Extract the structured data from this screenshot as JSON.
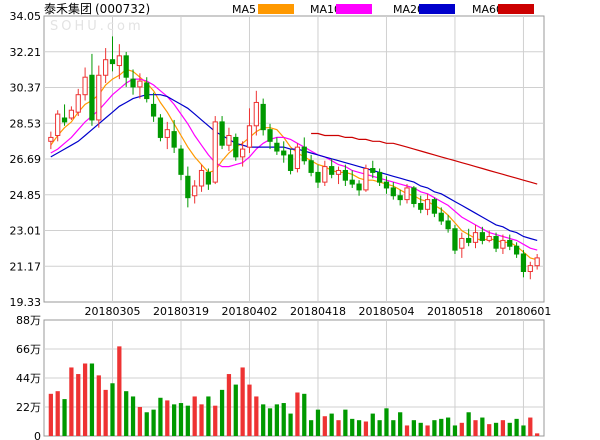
{
  "header": {
    "stock_name": "泰禾集团",
    "stock_code": "(000732)",
    "watermark": "SOHU.com"
  },
  "legend": [
    {
      "label": "MA5",
      "color": "#ff9900"
    },
    {
      "label": "MA10",
      "color": "#ff00ff"
    },
    {
      "label": "MA20",
      "color": "#0000cc"
    },
    {
      "label": "MA60",
      "color": "#cc0000"
    }
  ],
  "colors": {
    "up": "#ee3333",
    "down": "#009900",
    "grid": "#d0d0d0",
    "frame": "#999999"
  },
  "chart_data": [
    {
      "type": "candlestick",
      "y_ticks": [
        "34.05",
        "32.21",
        "30.37",
        "28.53",
        "26.69",
        "24.85",
        "23.01",
        "21.17",
        "19.33"
      ],
      "ylim": [
        19.33,
        34.05
      ],
      "x_tick_labels": [
        "20180305",
        "20180319",
        "20180402",
        "20180418",
        "20180504",
        "20180518",
        "20180601"
      ],
      "x_tick_index": [
        9,
        19,
        29,
        39,
        49,
        59,
        69
      ],
      "candles": [
        [
          27.6,
          28.1,
          27.2,
          27.8
        ],
        [
          27.9,
          29.2,
          27.6,
          29.0
        ],
        [
          28.8,
          29.5,
          28.4,
          28.6
        ],
        [
          28.8,
          29.4,
          28.7,
          29.2
        ],
        [
          29.1,
          30.3,
          28.9,
          30.0
        ],
        [
          30.0,
          31.4,
          29.7,
          30.9
        ],
        [
          31.0,
          32.1,
          28.4,
          28.7
        ],
        [
          28.7,
          31.5,
          28.3,
          31.0
        ],
        [
          31.0,
          32.4,
          30.6,
          31.8
        ],
        [
          31.8,
          33.0,
          31.2,
          31.6
        ],
        [
          31.5,
          32.6,
          30.8,
          32.0
        ],
        [
          32.0,
          32.2,
          30.4,
          30.9
        ],
        [
          30.8,
          31.3,
          30.0,
          30.4
        ],
        [
          30.4,
          31.1,
          29.8,
          30.7
        ],
        [
          30.6,
          30.9,
          29.6,
          29.8
        ],
        [
          29.5,
          30.1,
          28.6,
          28.9
        ],
        [
          28.8,
          29.0,
          27.6,
          27.8
        ],
        [
          27.8,
          28.6,
          27.2,
          28.2
        ],
        [
          28.1,
          28.7,
          27.0,
          27.3
        ],
        [
          27.2,
          27.4,
          25.6,
          25.9
        ],
        [
          25.8,
          26.3,
          24.2,
          24.7
        ],
        [
          24.8,
          25.6,
          24.4,
          25.3
        ],
        [
          25.3,
          26.4,
          25.0,
          26.1
        ],
        [
          26.0,
          26.2,
          25.1,
          25.4
        ],
        [
          25.5,
          28.9,
          25.4,
          28.6
        ],
        [
          28.6,
          28.9,
          27.2,
          27.4
        ],
        [
          27.4,
          28.3,
          27.1,
          27.9
        ],
        [
          27.8,
          28.0,
          26.6,
          26.8
        ],
        [
          26.8,
          27.6,
          26.3,
          27.2
        ],
        [
          27.3,
          29.3,
          27.0,
          28.4
        ],
        [
          28.4,
          30.2,
          27.9,
          29.6
        ],
        [
          29.5,
          29.8,
          27.9,
          28.2
        ],
        [
          28.2,
          28.5,
          27.2,
          27.6
        ],
        [
          27.5,
          27.8,
          26.9,
          27.1
        ],
        [
          27.1,
          27.6,
          26.5,
          26.9
        ],
        [
          26.9,
          27.2,
          25.9,
          26.1
        ],
        [
          26.2,
          27.5,
          26.0,
          27.3
        ],
        [
          27.3,
          27.8,
          26.4,
          26.6
        ],
        [
          26.6,
          26.9,
          25.8,
          26.0
        ],
        [
          26.0,
          26.4,
          25.2,
          25.5
        ],
        [
          25.5,
          26.6,
          25.3,
          26.3
        ],
        [
          26.3,
          26.7,
          25.7,
          25.9
        ],
        [
          25.9,
          26.3,
          25.4,
          26.1
        ],
        [
          26.1,
          26.4,
          25.3,
          25.6
        ],
        [
          25.6,
          26.1,
          25.2,
          25.4
        ],
        [
          25.4,
          25.6,
          24.8,
          25.1
        ],
        [
          25.1,
          26.4,
          25.0,
          26.2
        ],
        [
          26.2,
          26.6,
          25.7,
          26.0
        ],
        [
          26.0,
          26.2,
          25.3,
          25.5
        ],
        [
          25.5,
          25.8,
          24.9,
          25.2
        ],
        [
          25.2,
          25.5,
          24.6,
          24.8
        ],
        [
          24.8,
          25.1,
          24.3,
          24.6
        ],
        [
          24.6,
          25.4,
          24.4,
          25.2
        ],
        [
          25.2,
          25.3,
          24.2,
          24.4
        ],
        [
          24.4,
          24.8,
          23.9,
          24.1
        ],
        [
          24.1,
          24.9,
          23.8,
          24.6
        ],
        [
          24.6,
          24.7,
          23.7,
          23.9
        ],
        [
          23.9,
          24.2,
          23.3,
          23.5
        ],
        [
          23.5,
          23.8,
          22.9,
          23.1
        ],
        [
          23.1,
          23.3,
          21.8,
          22.0
        ],
        [
          22.1,
          22.9,
          21.6,
          22.6
        ],
        [
          22.6,
          23.1,
          22.2,
          22.4
        ],
        [
          22.4,
          23.3,
          22.1,
          22.9
        ],
        [
          22.9,
          23.2,
          22.3,
          22.5
        ],
        [
          22.5,
          23.0,
          22.4,
          22.7
        ],
        [
          22.7,
          22.9,
          21.9,
          22.1
        ],
        [
          22.1,
          22.8,
          21.8,
          22.5
        ],
        [
          22.5,
          22.8,
          22.0,
          22.2
        ],
        [
          22.2,
          22.4,
          21.6,
          21.8
        ],
        [
          21.8,
          22.0,
          20.6,
          20.9
        ],
        [
          20.9,
          21.4,
          20.5,
          21.2
        ],
        [
          21.2,
          21.8,
          21.0,
          21.6
        ]
      ],
      "ma": {
        "MA5": [
          27.4,
          27.9,
          28.3,
          28.6,
          29.1,
          29.5,
          29.7,
          30.0,
          30.5,
          30.8,
          31.0,
          31.3,
          31.2,
          30.9,
          30.6,
          30.2,
          29.6,
          29.1,
          28.5,
          27.9,
          27.3,
          26.8,
          26.4,
          26.0,
          26.1,
          26.6,
          27.0,
          27.3,
          27.5,
          27.8,
          28.1,
          28.3,
          28.3,
          28.2,
          27.8,
          27.3,
          27.0,
          26.8,
          26.6,
          26.4,
          26.3,
          26.1,
          26.0,
          26.0,
          25.9,
          25.7,
          25.6,
          25.6,
          25.5,
          25.4,
          25.3,
          25.1,
          24.9,
          24.8,
          24.6,
          24.5,
          24.3,
          24.1,
          23.8,
          23.4,
          23.0,
          22.8,
          22.6,
          22.5,
          22.6,
          22.5,
          22.4,
          22.4,
          22.2,
          21.9,
          21.6,
          21.5
        ],
        "MA10": [
          27.0,
          27.2,
          27.5,
          27.8,
          28.2,
          28.6,
          28.9,
          29.2,
          29.6,
          30.0,
          30.3,
          30.6,
          30.8,
          30.8,
          30.7,
          30.5,
          30.2,
          29.9,
          29.5,
          29.0,
          28.5,
          27.9,
          27.4,
          26.9,
          26.5,
          26.3,
          26.3,
          26.4,
          26.5,
          26.8,
          27.2,
          27.5,
          27.7,
          27.8,
          27.8,
          27.7,
          27.5,
          27.3,
          27.1,
          26.9,
          26.8,
          26.6,
          26.4,
          26.3,
          26.1,
          26.0,
          25.9,
          25.8,
          25.7,
          25.6,
          25.5,
          25.4,
          25.3,
          25.2,
          25.0,
          24.9,
          24.7,
          24.5,
          24.3,
          24.0,
          23.7,
          23.5,
          23.3,
          23.1,
          22.9,
          22.8,
          22.7,
          22.6,
          22.5,
          22.3,
          22.1,
          22.0
        ],
        "MA20": [
          26.8,
          27.0,
          27.2,
          27.4,
          27.6,
          27.9,
          28.2,
          28.5,
          28.8,
          29.1,
          29.4,
          29.6,
          29.8,
          29.9,
          30.0,
          30.0,
          30.0,
          29.9,
          29.7,
          29.5,
          29.3,
          29.0,
          28.7,
          28.4,
          28.1,
          27.9,
          27.7,
          27.5,
          27.4,
          27.3,
          27.3,
          27.3,
          27.3,
          27.3,
          27.3,
          27.2,
          27.2,
          27.1,
          27.0,
          26.9,
          26.8,
          26.7,
          26.6,
          26.5,
          26.4,
          26.3,
          26.2,
          26.1,
          26.0,
          25.9,
          25.8,
          25.7,
          25.6,
          25.5,
          25.3,
          25.2,
          25.0,
          24.9,
          24.7,
          24.5,
          24.3,
          24.1,
          23.9,
          23.7,
          23.5,
          23.3,
          23.2,
          23.0,
          22.9,
          22.7,
          22.6,
          22.5
        ],
        "MA60": [
          null,
          null,
          null,
          null,
          null,
          null,
          null,
          null,
          null,
          null,
          null,
          null,
          null,
          null,
          null,
          null,
          null,
          null,
          null,
          null,
          null,
          null,
          null,
          null,
          null,
          null,
          null,
          null,
          null,
          null,
          null,
          null,
          null,
          null,
          null,
          null,
          null,
          null,
          28.0,
          28.0,
          27.9,
          27.9,
          27.9,
          27.8,
          27.8,
          27.7,
          27.7,
          27.6,
          27.6,
          27.5,
          27.5,
          27.4,
          27.3,
          27.2,
          27.1,
          27.0,
          26.9,
          26.8,
          26.7,
          26.6,
          26.5,
          26.4,
          26.3,
          26.2,
          26.1,
          26.0,
          25.9,
          25.8,
          25.7,
          25.6,
          25.5,
          25.4
        ]
      }
    },
    {
      "type": "bar",
      "y_ticks": [
        "88万",
        "66万",
        "44万",
        "22万",
        "0"
      ],
      "ylim": [
        0,
        88
      ],
      "volumes": [
        32,
        34,
        28,
        52,
        47,
        55,
        55,
        46,
        35,
        40,
        68,
        34,
        30,
        22,
        18,
        20,
        29,
        27,
        24,
        25,
        23,
        30,
        24,
        30,
        23,
        35,
        47,
        39,
        52,
        39,
        30,
        24,
        21,
        24,
        25,
        17,
        33,
        32,
        12,
        20,
        15,
        17,
        12,
        20,
        13,
        12,
        11,
        17,
        12,
        21,
        12,
        18,
        8,
        12,
        10,
        8,
        12,
        13,
        14,
        8,
        10,
        18,
        12,
        14,
        9,
        10,
        12,
        10,
        13,
        8,
        14,
        2
      ]
    }
  ]
}
